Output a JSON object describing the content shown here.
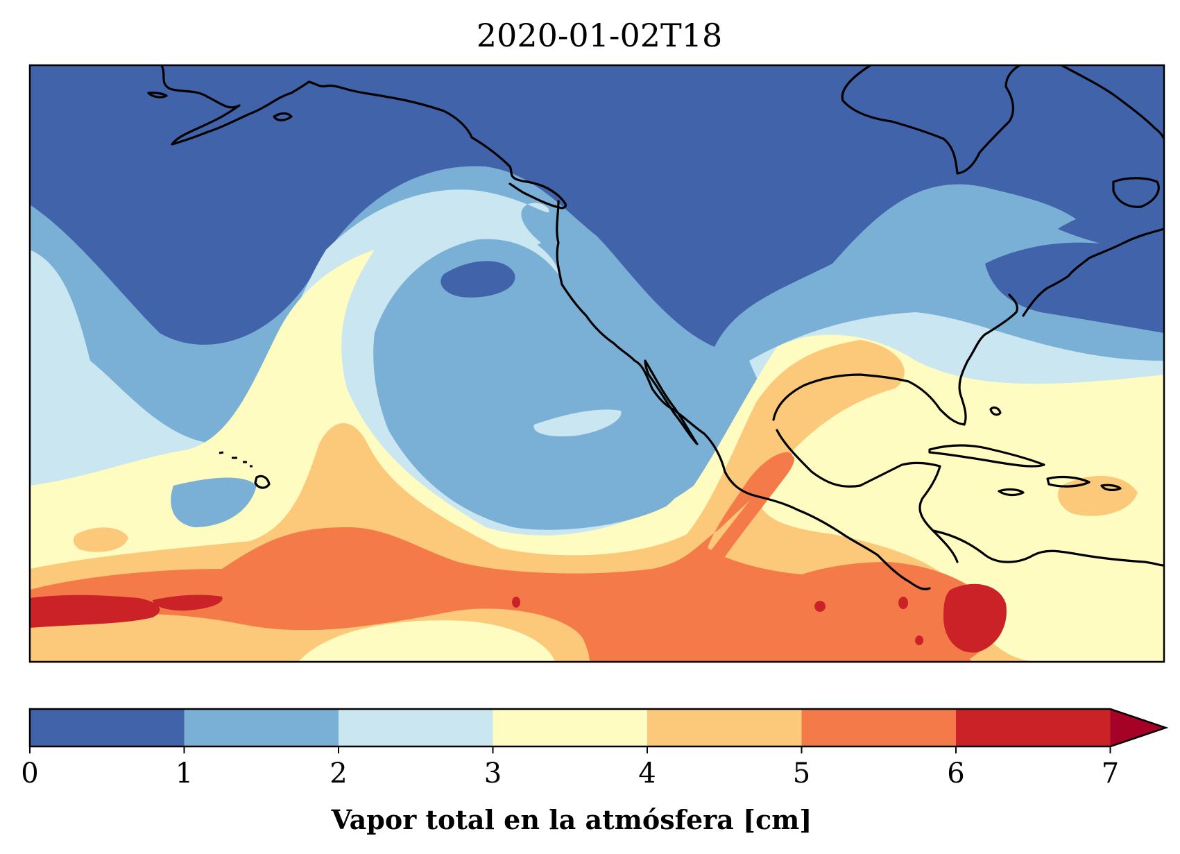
{
  "title": "2020-01-02T18",
  "colorbar": {
    "label": "Vapor total en la atmósfera [cm]",
    "ticks": [
      "0",
      "1",
      "2",
      "3",
      "4",
      "5",
      "6",
      "7"
    ],
    "levels": [
      0,
      1,
      2,
      3,
      4,
      5,
      6,
      7
    ],
    "extend": "max",
    "colors": [
      "#4163aa",
      "#7ab0d5",
      "#c9e6f1",
      "#fefcc1",
      "#fcc97a",
      "#f47a49",
      "#cb2228"
    ],
    "over_color": "#a60126"
  },
  "map": {
    "variable": "Vapor total en la atmósfera",
    "units": "cm",
    "region": "North-East Pacific, North America, Gulf of Mexico and Caribbean",
    "coastlines": true
  }
}
